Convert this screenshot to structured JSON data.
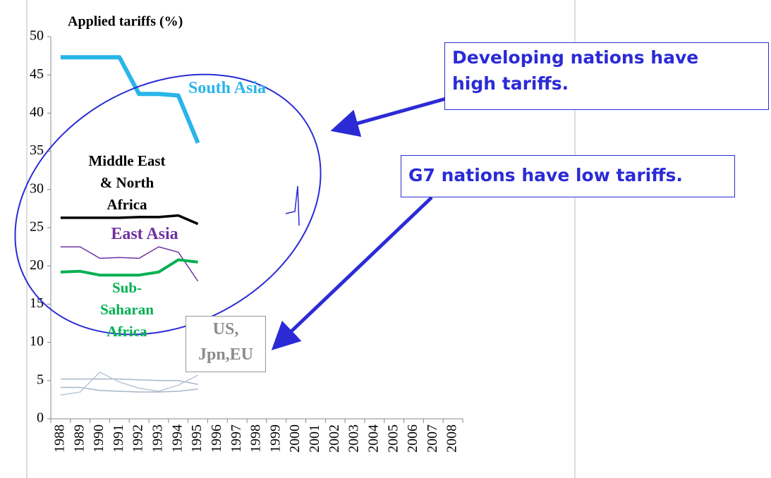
{
  "chart_data": {
    "type": "line",
    "title": "Applied tariffs (%)",
    "categories": [
      "1988",
      "1989",
      "1990",
      "1991",
      "1992",
      "1993",
      "1994",
      "1995",
      "1996",
      "1997",
      "1998",
      "1999",
      "2000",
      "2001",
      "2002",
      "2003",
      "2004",
      "2005",
      "2006",
      "2007",
      "2008"
    ],
    "series": [
      {
        "name": "South Asia",
        "color": "#29b5e8",
        "width": 6,
        "values": [
          47.3,
          47.3,
          47.3,
          47.3,
          42.5,
          42.5,
          42.3,
          36.1,
          null,
          null,
          null,
          null,
          null,
          null,
          null,
          null,
          null,
          null,
          null,
          null,
          null
        ]
      },
      {
        "name": "Middle East\n& North\nAfrica",
        "color": "#000000",
        "width": 3.5,
        "values": [
          26.3,
          26.3,
          26.3,
          26.3,
          26.4,
          26.4,
          26.6,
          25.5,
          null,
          null,
          null,
          null,
          null,
          null,
          null,
          null,
          null,
          null,
          null,
          null,
          null
        ]
      },
      {
        "name": "East Asia",
        "color": "#7030a0",
        "width": 1.5,
        "values": [
          22.5,
          22.5,
          21.0,
          21.1,
          21.0,
          22.5,
          21.8,
          18.0,
          null,
          null,
          null,
          null,
          null,
          null,
          null,
          null,
          null,
          null,
          null,
          null,
          null
        ]
      },
      {
        "name": "Sub-\nSaharan\nAfrica",
        "color": "#00b050",
        "width": 4,
        "values": [
          19.2,
          19.3,
          18.8,
          18.8,
          18.8,
          19.2,
          20.8,
          20.5,
          null,
          null,
          null,
          null,
          null,
          null,
          null,
          null,
          null,
          null,
          null,
          null,
          null
        ]
      },
      {
        "color": "#a6b6c8",
        "width": 1.5,
        "values": [
          5.2,
          5.2,
          5.2,
          5.2,
          5.1,
          5.0,
          5.0,
          4.5,
          null,
          null,
          null,
          null,
          null,
          null,
          null,
          null,
          null,
          null,
          null,
          null,
          null
        ]
      },
      {
        "color": "#a6b6c8",
        "width": 1.5,
        "values": [
          4.1,
          4.1,
          3.7,
          3.6,
          3.5,
          3.5,
          3.6,
          3.9,
          null,
          null,
          null,
          null,
          null,
          null,
          null,
          null,
          null,
          null,
          null,
          null,
          null
        ]
      },
      {
        "color": "#b8c6d6",
        "width": 1.5,
        "values": [
          3.1,
          3.5,
          6.1,
          4.8,
          4.0,
          3.6,
          4.4,
          5.7,
          null,
          null,
          null,
          null,
          null,
          null,
          null,
          null,
          null,
          null,
          null,
          null,
          null
        ]
      }
    ],
    "group_label": "US,\nJpn,EU",
    "annotations": [
      "Developing nations have\nhigh tariffs.",
      "G7 nations have low tariffs."
    ],
    "ylim": [
      0,
      50
    ],
    "yticks": [
      0,
      5,
      10,
      15,
      20,
      25,
      30,
      35,
      40,
      45,
      50
    ]
  }
}
